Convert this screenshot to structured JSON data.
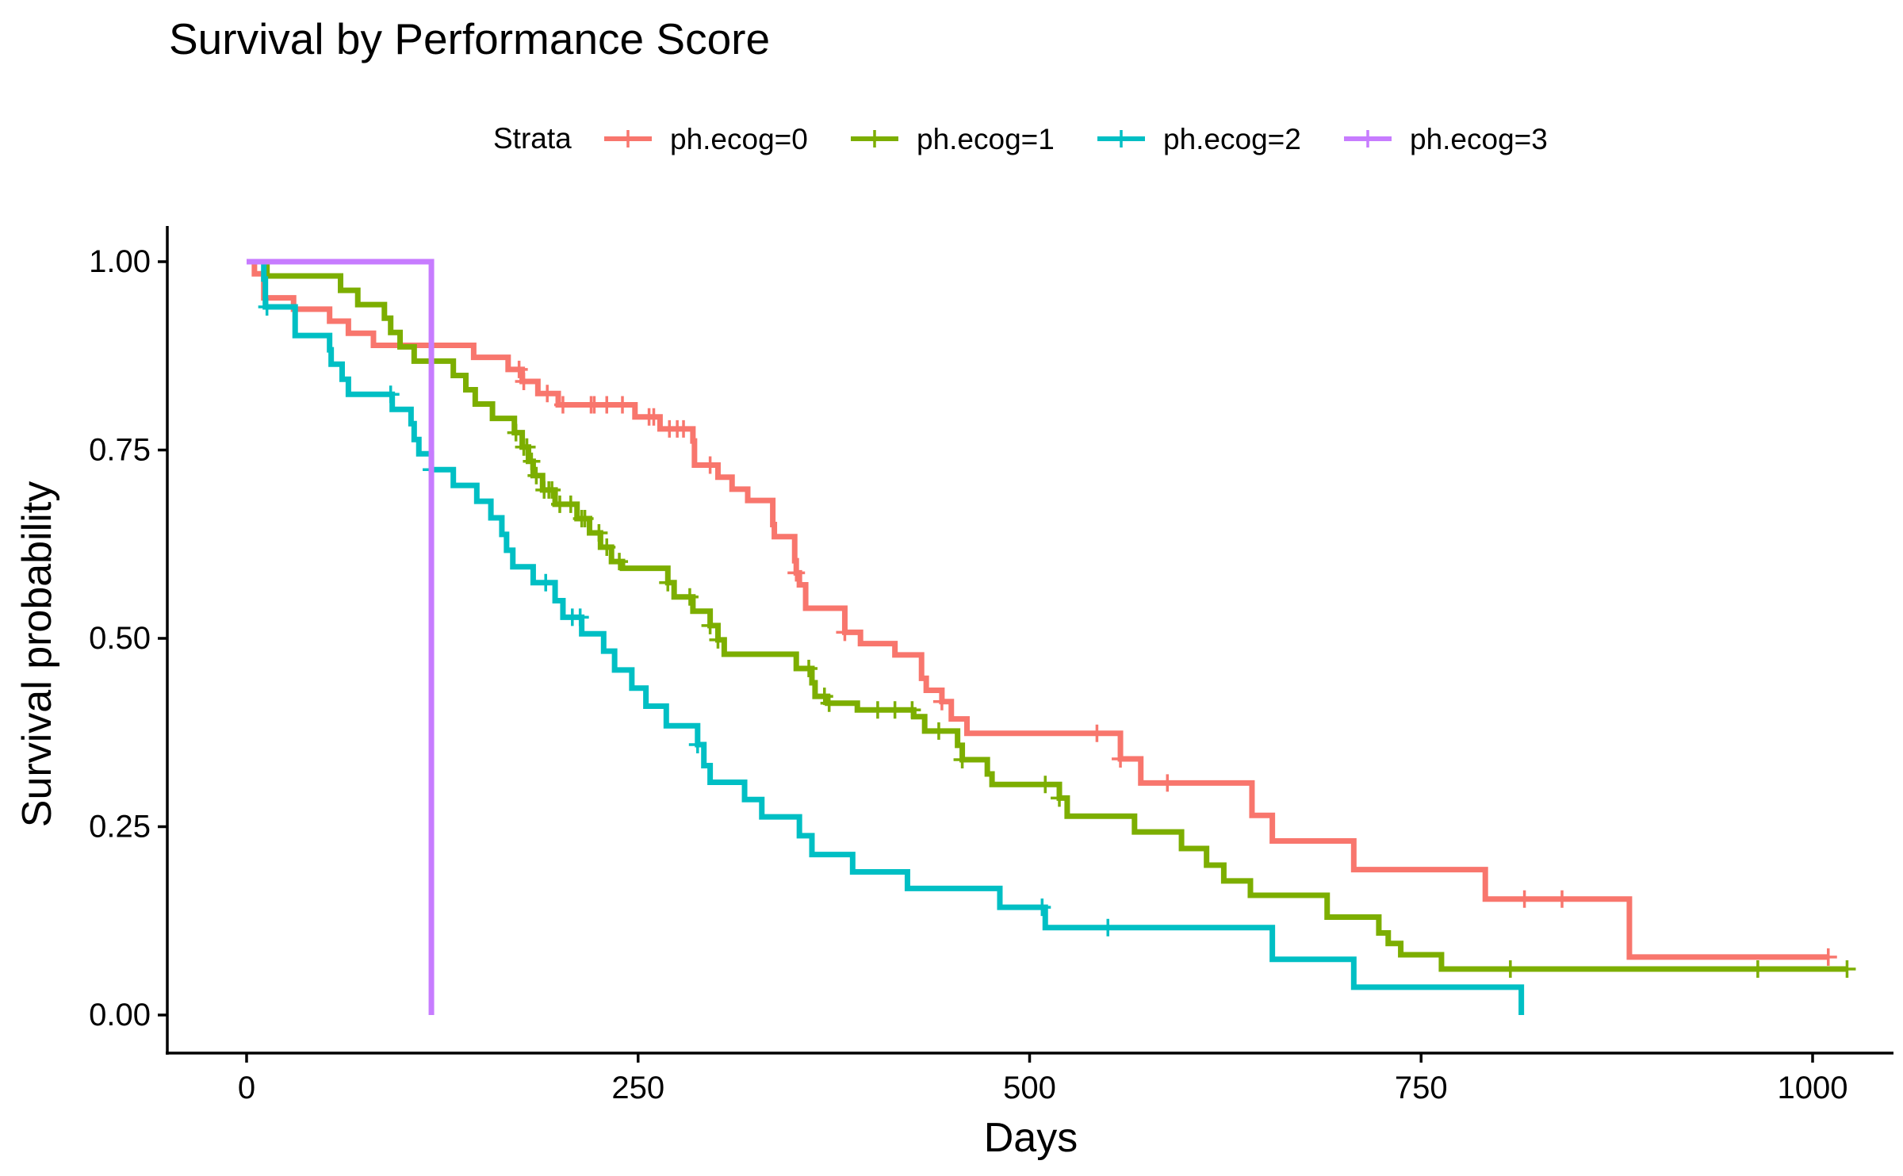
{
  "chart_data": {
    "type": "line",
    "subtype": "kaplan-meier step",
    "title": "Survival by Performance Score",
    "xlabel": "Days",
    "ylabel": "Survival probability",
    "xlim": [
      0,
      1022
    ],
    "ylim": [
      0,
      1
    ],
    "x_ticks": [
      0,
      250,
      500,
      750,
      1000
    ],
    "x_tick_labels": [
      "0",
      "250",
      "500",
      "750",
      "1000"
    ],
    "y_ticks": [
      0,
      0.25,
      0.5,
      0.75,
      1
    ],
    "y_tick_labels": [
      "0.00",
      "0.25",
      "0.50",
      "0.75",
      "1.00"
    ],
    "grid": false,
    "legend": {
      "title": "Strata",
      "position": "top"
    },
    "series": [
      {
        "name": "ph.ecog=0",
        "color": "#F8766D",
        "steps": [
          [
            0,
            1.0
          ],
          [
            5,
            0.984
          ],
          [
            11,
            0.952
          ],
          [
            30,
            0.937
          ],
          [
            53,
            0.921
          ],
          [
            65,
            0.905
          ],
          [
            81,
            0.889
          ],
          [
            145,
            0.873
          ],
          [
            167,
            0.857
          ],
          [
            176,
            0.841
          ],
          [
            186,
            0.825
          ],
          [
            199,
            0.81
          ],
          [
            248,
            0.794
          ],
          [
            264,
            0.778
          ],
          [
            285,
            0.762
          ],
          [
            286,
            0.73
          ],
          [
            301,
            0.714
          ],
          [
            310,
            0.698
          ],
          [
            320,
            0.683
          ],
          [
            336,
            0.651
          ],
          [
            337,
            0.635
          ],
          [
            350,
            0.603
          ],
          [
            351,
            0.587
          ],
          [
            353,
            0.571
          ],
          [
            357,
            0.54
          ],
          [
            382,
            0.508
          ],
          [
            392,
            0.493
          ],
          [
            414,
            0.478
          ],
          [
            431,
            0.447
          ],
          [
            434,
            0.431
          ],
          [
            444,
            0.416
          ],
          [
            450,
            0.393
          ],
          [
            460,
            0.374
          ],
          [
            558,
            0.34
          ],
          [
            571,
            0.308
          ],
          [
            642,
            0.265
          ],
          [
            655,
            0.231
          ],
          [
            707,
            0.193
          ],
          [
            791,
            0.154
          ],
          [
            883,
            0.077
          ]
        ],
        "censor_times": [
          174,
          177,
          192,
          202,
          220,
          222,
          230,
          240,
          257,
          260,
          270,
          275,
          279,
          296,
          351,
          382,
          444,
          543,
          558,
          588,
          816,
          840,
          1010
        ],
        "end_x": 1010
      },
      {
        "name": "ph.ecog=1",
        "color": "#7CAE00",
        "steps": [
          [
            0,
            1.0
          ],
          [
            13,
            0.981
          ],
          [
            60,
            0.962
          ],
          [
            71,
            0.943
          ],
          [
            88,
            0.925
          ],
          [
            92,
            0.906
          ],
          [
            98,
            0.887
          ],
          [
            107,
            0.868
          ],
          [
            132,
            0.849
          ],
          [
            140,
            0.83
          ],
          [
            146,
            0.811
          ],
          [
            157,
            0.792
          ],
          [
            171,
            0.773
          ],
          [
            176,
            0.754
          ],
          [
            180,
            0.735
          ],
          [
            183,
            0.716
          ],
          [
            189,
            0.697
          ],
          [
            197,
            0.678
          ],
          [
            211,
            0.659
          ],
          [
            219,
            0.64
          ],
          [
            226,
            0.621
          ],
          [
            233,
            0.602
          ],
          [
            240,
            0.593
          ],
          [
            269,
            0.574
          ],
          [
            273,
            0.555
          ],
          [
            285,
            0.536
          ],
          [
            296,
            0.517
          ],
          [
            301,
            0.498
          ],
          [
            305,
            0.479
          ],
          [
            351,
            0.46
          ],
          [
            361,
            0.441
          ],
          [
            363,
            0.423
          ],
          [
            371,
            0.414
          ],
          [
            390,
            0.405
          ],
          [
            426,
            0.396
          ],
          [
            433,
            0.377
          ],
          [
            454,
            0.358
          ],
          [
            457,
            0.339
          ],
          [
            473,
            0.32
          ],
          [
            476,
            0.306
          ],
          [
            519,
            0.288
          ],
          [
            524,
            0.264
          ],
          [
            567,
            0.243
          ],
          [
            597,
            0.221
          ],
          [
            613,
            0.199
          ],
          [
            624,
            0.178
          ],
          [
            641,
            0.159
          ],
          [
            690,
            0.13
          ],
          [
            723,
            0.109
          ],
          [
            729,
            0.095
          ],
          [
            737,
            0.08
          ],
          [
            763,
            0.061
          ]
        ],
        "censor_times": [
          172,
          177,
          179,
          182,
          185,
          190,
          193,
          195,
          200,
          207,
          214,
          216,
          225,
          230,
          238,
          269,
          283,
          296,
          301,
          359,
          369,
          372,
          403,
          414,
          425,
          442,
          457,
          510,
          519,
          807,
          965,
          1022
        ],
        "end_x": 1022
      },
      {
        "name": "ph.ecog=2",
        "color": "#00BFC4",
        "steps": [
          [
            0,
            1.0
          ],
          [
            11,
            0.977
          ],
          [
            12,
            0.94
          ],
          [
            31,
            0.902
          ],
          [
            53,
            0.883
          ],
          [
            54,
            0.864
          ],
          [
            61,
            0.844
          ],
          [
            65,
            0.824
          ],
          [
            93,
            0.804
          ],
          [
            105,
            0.785
          ],
          [
            107,
            0.764
          ],
          [
            110,
            0.745
          ],
          [
            118,
            0.724
          ],
          [
            132,
            0.703
          ],
          [
            147,
            0.682
          ],
          [
            156,
            0.66
          ],
          [
            163,
            0.638
          ],
          [
            166,
            0.617
          ],
          [
            170,
            0.595
          ],
          [
            183,
            0.574
          ],
          [
            197,
            0.55
          ],
          [
            202,
            0.528
          ],
          [
            214,
            0.506
          ],
          [
            228,
            0.483
          ],
          [
            235,
            0.458
          ],
          [
            246,
            0.434
          ],
          [
            255,
            0.41
          ],
          [
            268,
            0.384
          ],
          [
            288,
            0.359
          ],
          [
            292,
            0.331
          ],
          [
            296,
            0.309
          ],
          [
            318,
            0.286
          ],
          [
            329,
            0.263
          ],
          [
            353,
            0.238
          ],
          [
            361,
            0.213
          ],
          [
            387,
            0.19
          ],
          [
            422,
            0.168
          ],
          [
            481,
            0.143
          ],
          [
            510,
            0.116
          ],
          [
            655,
            0.074
          ],
          [
            707,
            0.037
          ],
          [
            814,
            0.0
          ]
        ],
        "censor_times": [
          13,
          92,
          118,
          191,
          208,
          213,
          288,
          508,
          550
        ],
        "end_x": 814
      },
      {
        "name": "ph.ecog=3",
        "color": "#C77CFF",
        "steps": [
          [
            0,
            1.0
          ],
          [
            118,
            0.0
          ]
        ],
        "censor_times": [],
        "end_x": 118
      }
    ]
  }
}
